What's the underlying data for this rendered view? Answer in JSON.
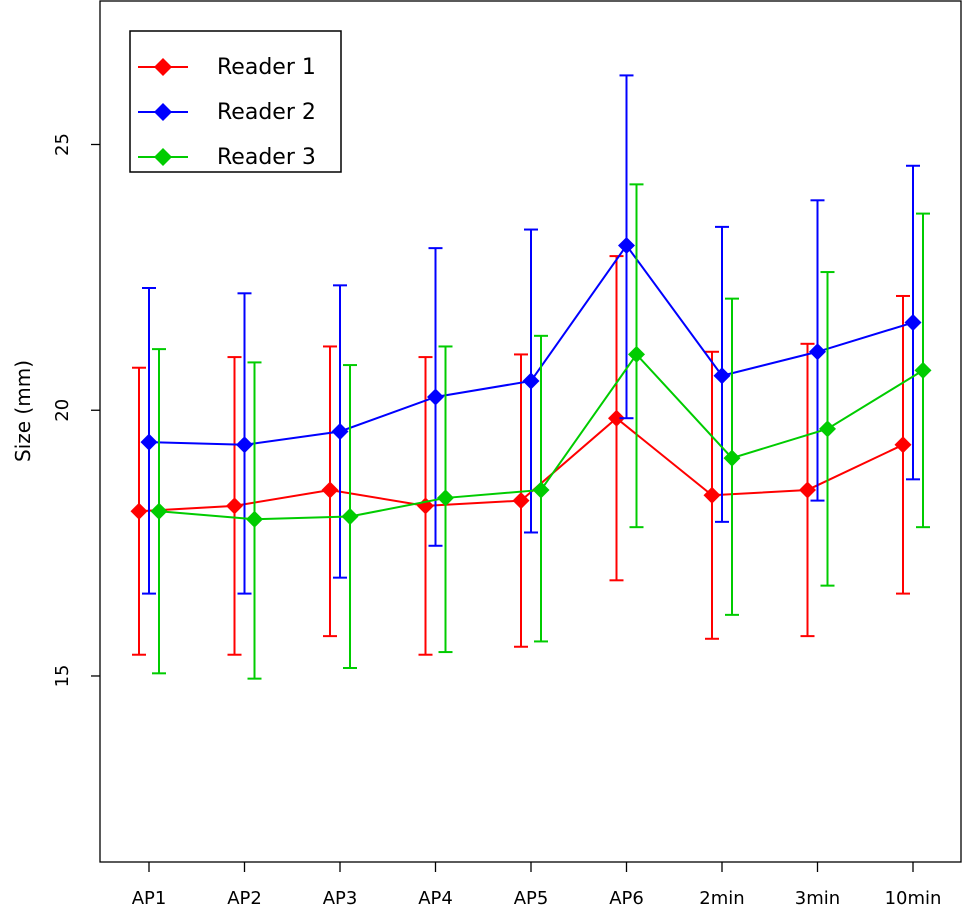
{
  "chart_data": {
    "type": "line",
    "title": "",
    "xlabel": "",
    "ylabel": "Size (mm)",
    "ylim": [
      11.5,
      27.7
    ],
    "yticks": [
      15,
      20,
      25
    ],
    "categories": [
      "AP1",
      "AP2",
      "AP3",
      "AP4",
      "AP5",
      "AP6",
      "2min",
      "3min",
      "10min"
    ],
    "error_bars": true,
    "legend_position": "top-left",
    "series": [
      {
        "name": "Reader 1",
        "color": "#ff0000",
        "values": [
          18.1,
          18.2,
          18.5,
          18.2,
          18.3,
          19.85,
          18.4,
          18.5,
          19.35
        ],
        "lower": [
          15.4,
          15.4,
          15.75,
          15.4,
          15.55,
          16.8,
          15.7,
          15.75,
          16.55
        ],
        "upper": [
          20.8,
          21.0,
          21.2,
          21.0,
          21.05,
          22.9,
          21.1,
          21.25,
          22.15
        ]
      },
      {
        "name": "Reader 2",
        "color": "#0000ff",
        "values": [
          19.4,
          19.35,
          19.6,
          20.25,
          20.55,
          23.1,
          20.65,
          21.1,
          21.65
        ],
        "lower": [
          16.55,
          16.55,
          16.85,
          17.45,
          17.7,
          19.85,
          17.9,
          18.3,
          18.7
        ],
        "upper": [
          22.3,
          22.2,
          22.35,
          23.05,
          23.4,
          26.3,
          23.45,
          23.95,
          24.6
        ]
      },
      {
        "name": "Reader 3",
        "color": "#00cc00",
        "values": [
          18.1,
          17.95,
          18.0,
          18.35,
          18.5,
          21.05,
          19.1,
          19.65,
          20.75
        ],
        "lower": [
          15.05,
          14.95,
          15.15,
          15.45,
          15.65,
          17.8,
          16.15,
          16.7,
          17.8
        ],
        "upper": [
          21.15,
          20.9,
          20.85,
          21.2,
          21.4,
          24.25,
          22.1,
          22.6,
          23.7
        ]
      }
    ]
  }
}
